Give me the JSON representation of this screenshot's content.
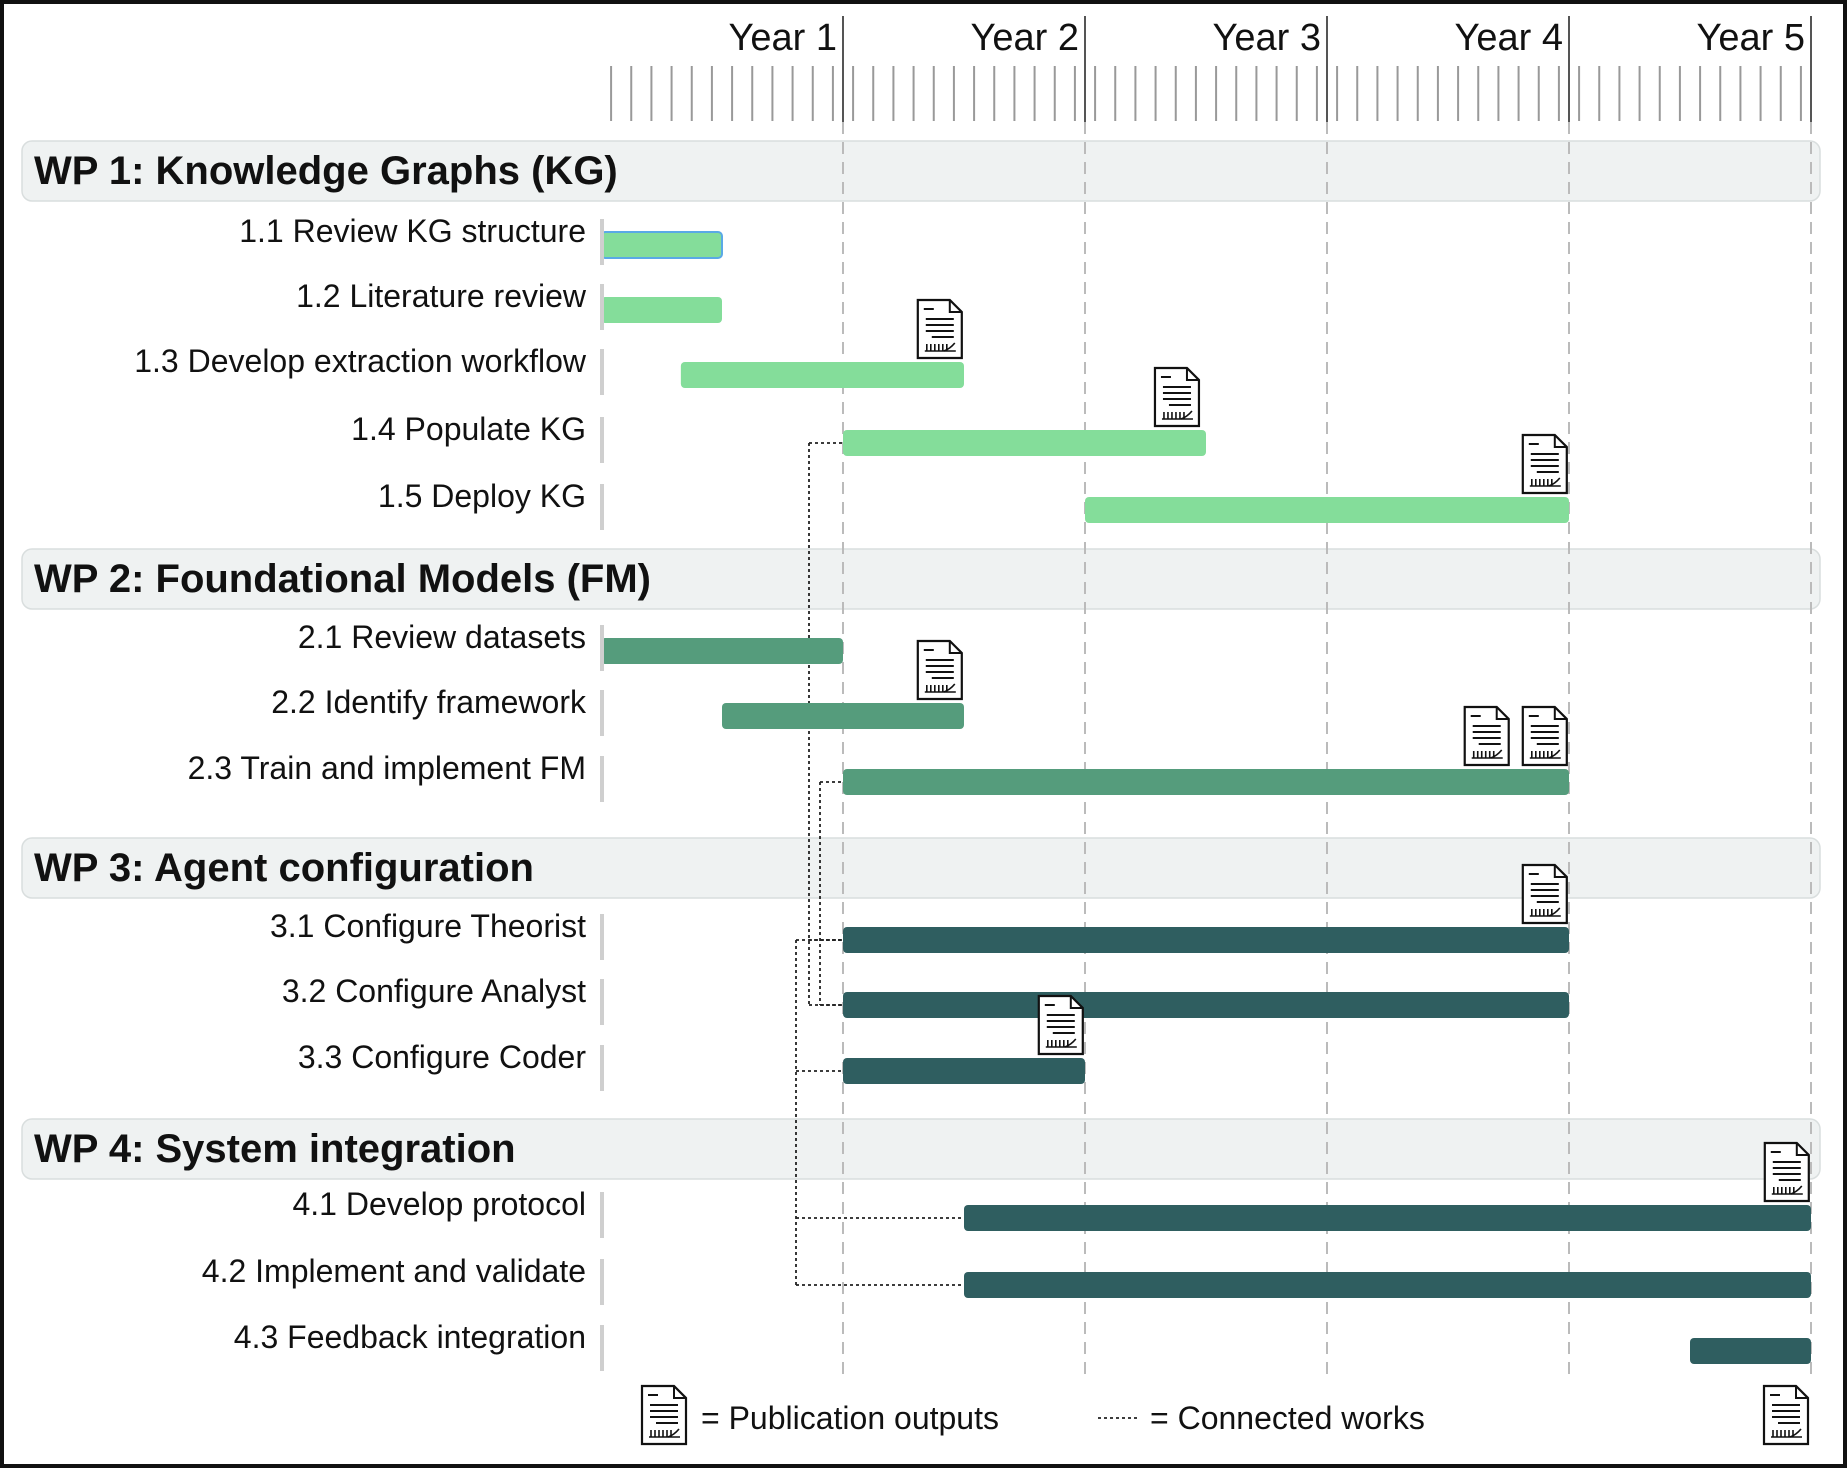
{
  "timeline": {
    "years": [
      "Year 1",
      "Year 2",
      "Year 3",
      "Year 4",
      "Year 5"
    ],
    "subticks_per_year": 12
  },
  "work_packages": [
    {
      "title": "WP 1: Knowledge Graphs (KG)",
      "shade": "light",
      "tasks": [
        {
          "label": "1.1 Review KG structure",
          "start": 0.0,
          "end": 0.5,
          "color": "#84dd9a",
          "outlined": true
        },
        {
          "label": "1.2 Literature review",
          "start": 0.0,
          "end": 0.5,
          "color": "#84dd9a"
        },
        {
          "label": "1.3 Develop extraction workflow",
          "start": 0.33,
          "end": 1.5,
          "color": "#84dd9a",
          "publications_at": [
            1.4
          ]
        },
        {
          "label": "1.4 Populate KG",
          "start": 1.0,
          "end": 2.5,
          "color": "#84dd9a",
          "publications_at": [
            2.38
          ]
        },
        {
          "label": "1.5 Deploy KG",
          "start": 2.0,
          "end": 4.0,
          "color": "#84dd9a",
          "publications_at": [
            3.9
          ]
        }
      ]
    },
    {
      "title": "WP 2: Foundational Models (FM)",
      "tasks": [
        {
          "label": "2.1 Review datasets",
          "start": 0.0,
          "end": 1.0,
          "color": "#559c7c"
        },
        {
          "label": "2.2 Identify framework",
          "start": 0.5,
          "end": 1.5,
          "color": "#559c7c",
          "publications_at": [
            1.4
          ]
        },
        {
          "label": "2.3 Train and implement FM",
          "start": 1.0,
          "end": 4.0,
          "color": "#559c7c",
          "publications_at": [
            3.66,
            3.9
          ]
        }
      ]
    },
    {
      "title": "WP 3: Agent configuration",
      "tasks": [
        {
          "label": "3.1 Configure Theorist",
          "start": 1.0,
          "end": 4.0,
          "color": "#2f5e60",
          "publications_at": [
            3.9
          ]
        },
        {
          "label": "3.2 Configure Analyst",
          "start": 1.0,
          "end": 4.0,
          "color": "#2f5e60"
        },
        {
          "label": "3.3 Configure Coder",
          "start": 1.0,
          "end": 2.0,
          "color": "#2f5e60",
          "publications_at": [
            1.9
          ]
        }
      ]
    },
    {
      "title": "WP 4: System integration",
      "tasks": [
        {
          "label": "4.1 Develop protocol",
          "start": 1.5,
          "end": 5.0,
          "color": "#2f5e60",
          "publications_at": [
            4.9
          ]
        },
        {
          "label": "4.2 Implement and validate",
          "start": 1.5,
          "end": 5.0,
          "color": "#2f5e60"
        },
        {
          "label": "4.3 Feedback integration",
          "start": 4.5,
          "end": 5.0,
          "color": "#2f5e60"
        }
      ]
    }
  ],
  "connected_works": [
    {
      "from": "1.4 Populate KG",
      "to": [
        "3.1 Configure Theorist",
        "3.2 Configure Analyst"
      ]
    },
    {
      "from": "2.3 Train and implement FM",
      "to": [
        "3.1 Configure Theorist",
        "3.2 Configure Analyst"
      ]
    },
    {
      "from": "3.1 Configure Theorist",
      "to": [
        "3.3 Configure Coder",
        "4.1 Develop protocol",
        "4.2 Implement and validate"
      ]
    }
  ],
  "legend": {
    "publication_label": "= Publication outputs",
    "connected_label": "= Connected works"
  },
  "colors": {
    "wp_band_fill": "#eff2f2",
    "wp_band_stroke": "#d9dede",
    "grid_dash": "#bbbbbb",
    "tick": "#999999",
    "label_bar": "#cfcfcf"
  }
}
